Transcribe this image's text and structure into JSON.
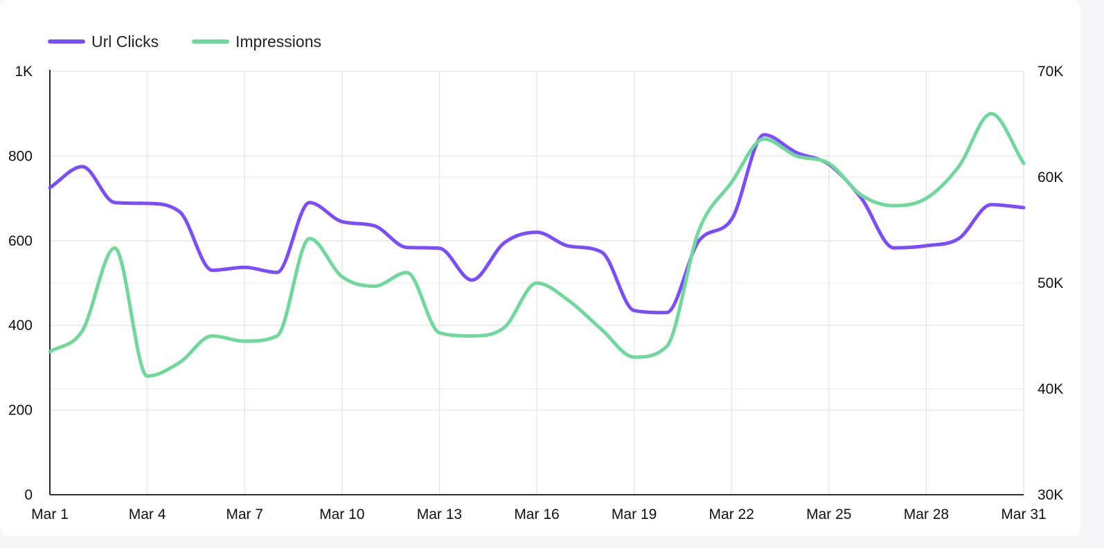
{
  "chart_data": {
    "type": "line",
    "title": "",
    "xlabel": "",
    "ylabel": "",
    "legend_position": "top-left",
    "grid": true,
    "x": [
      "Mar 1",
      "Mar 2",
      "Mar 3",
      "Mar 4",
      "Mar 5",
      "Mar 6",
      "Mar 7",
      "Mar 8",
      "Mar 9",
      "Mar 10",
      "Mar 11",
      "Mar 12",
      "Mar 13",
      "Mar 14",
      "Mar 15",
      "Mar 16",
      "Mar 17",
      "Mar 18",
      "Mar 19",
      "Mar 20",
      "Mar 21",
      "Mar 22",
      "Mar 23",
      "Mar 24",
      "Mar 25",
      "Mar 26",
      "Mar 27",
      "Mar 28",
      "Mar 29",
      "Mar 30",
      "Mar 31"
    ],
    "x_tick_labels": [
      "Mar 1",
      "Mar 4",
      "Mar 7",
      "Mar 10",
      "Mar 13",
      "Mar 16",
      "Mar 19",
      "Mar 22",
      "Mar 25",
      "Mar 28",
      "Mar 31"
    ],
    "y_left": {
      "ylim": [
        0,
        1000
      ],
      "tick_labels": [
        "0",
        "200",
        "400",
        "600",
        "800",
        "1K"
      ]
    },
    "y_right": {
      "ylim": [
        30000,
        70000
      ],
      "tick_labels": [
        "30K",
        "40K",
        "50K",
        "60K",
        "70K"
      ]
    },
    "series": [
      {
        "name": "Url Clicks",
        "axis": "left",
        "color": "#7c4dff",
        "values": [
          725,
          775,
          690,
          688,
          668,
          530,
          537,
          525,
          690,
          645,
          635,
          584,
          582,
          507,
          595,
          620,
          587,
          573,
          435,
          430,
          600,
          650,
          850,
          808,
          780,
          700,
          583,
          588,
          605,
          685,
          678
        ]
      },
      {
        "name": "Impressions",
        "axis": "right",
        "color": "#6fd89b",
        "values": [
          43500,
          45500,
          53300,
          41200,
          42500,
          45000,
          44500,
          45000,
          54200,
          50600,
          49700,
          51000,
          45300,
          45000,
          45800,
          50000,
          48300,
          45600,
          43000,
          44000,
          55000,
          59500,
          63600,
          62000,
          61300,
          58300,
          57300,
          58000,
          61000,
          66000,
          61300
        ]
      }
    ]
  }
}
